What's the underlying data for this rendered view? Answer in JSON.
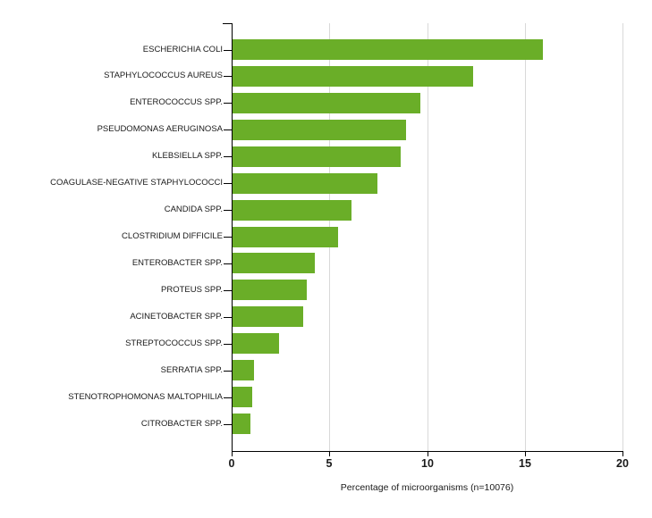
{
  "chart_data": {
    "type": "bar",
    "orientation": "horizontal",
    "title": "",
    "xlabel": "Percentage of microorganisms (n=10076)",
    "ylabel": "",
    "categories": [
      "ESCHERICHIA COLI",
      "STAPHYLOCOCCUS AUREUS",
      "ENTEROCOCCUS SPP.",
      "PSEUDOMONAS AERUGINOSA",
      "KLEBSIELLA SPP.",
      "COAGULASE-NEGATIVE STAPHYLOCOCCI",
      "CANDIDA SPP.",
      "CLOSTRIDIUM DIFFICILE",
      "ENTEROBACTER SPP.",
      "PROTEUS SPP.",
      "ACINETOBACTER SPP.",
      "STREPTOCOCCUS SPP.",
      "SERRATIA SPP.",
      "STENOTROPHOMONAS MALTOPHILIA",
      "CITROBACTER SPP."
    ],
    "values": [
      15.9,
      12.3,
      9.6,
      8.9,
      8.6,
      7.4,
      6.1,
      5.4,
      4.2,
      3.8,
      3.6,
      2.4,
      1.1,
      1.0,
      0.9
    ],
    "xlim": [
      0,
      20
    ],
    "xticks": [
      "0",
      "5",
      "10",
      "15",
      "20"
    ],
    "xtick_values": [
      0,
      5,
      10,
      15,
      20
    ],
    "grid": "vertical-light-gray",
    "legend": "none",
    "colors": {
      "bar": "#6aae28",
      "axis": "#000000",
      "gridline": "#d9d9d9",
      "text": "#1a1a1a",
      "background": "#ffffff"
    }
  }
}
